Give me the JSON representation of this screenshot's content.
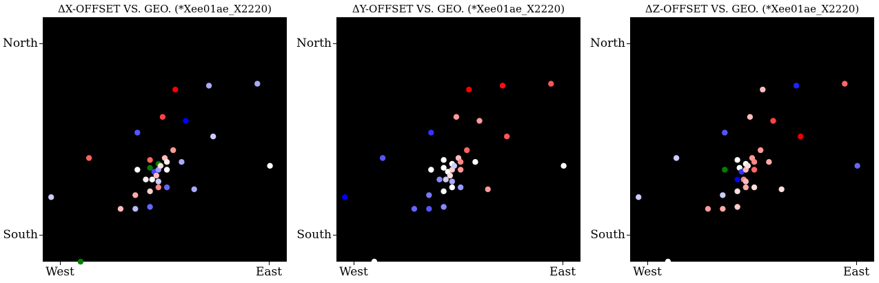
{
  "chart_data": [
    {
      "type": "scatter",
      "title": "ΔX-OFFSET VS. GEO. (*Xee01ae_X2220)",
      "xticks": [
        {
          "label": "West",
          "value": 0
        },
        {
          "label": "East",
          "value": 1
        }
      ],
      "yticks": [
        {
          "label": "North",
          "value": 1
        },
        {
          "label": "South",
          "value": 0
        }
      ],
      "xlim": [
        -0.08,
        1.08
      ],
      "ylim": [
        -0.11,
        1.14
      ],
      "points": [
        {
          "x": -0.04,
          "y": 0.22,
          "color": "#ccccff"
        },
        {
          "x": 0.1,
          "y": -0.11,
          "color": "#008000"
        },
        {
          "x": 0.14,
          "y": 0.42,
          "color": "#ff6060"
        },
        {
          "x": 0.29,
          "y": 0.16,
          "color": "#ffbbbb"
        },
        {
          "x": 0.36,
          "y": 0.16,
          "color": "#bbbbff"
        },
        {
          "x": 0.36,
          "y": 0.23,
          "color": "#ffaaaa"
        },
        {
          "x": 0.37,
          "y": 0.36,
          "color": "#ffffff"
        },
        {
          "x": 0.37,
          "y": 0.55,
          "color": "#5555ff"
        },
        {
          "x": 0.41,
          "y": 0.31,
          "color": "#ffeeee"
        },
        {
          "x": 0.43,
          "y": 0.25,
          "color": "#ffcccc"
        },
        {
          "x": 0.43,
          "y": 0.17,
          "color": "#6666ff"
        },
        {
          "x": 0.43,
          "y": 0.41,
          "color": "#ff6666"
        },
        {
          "x": 0.43,
          "y": 0.37,
          "color": "#008000"
        },
        {
          "x": 0.44,
          "y": 0.31,
          "color": "#ffffff"
        },
        {
          "x": 0.45,
          "y": 0.35,
          "color": "#4444ff"
        },
        {
          "x": 0.46,
          "y": 0.33,
          "color": "#ffbbbb"
        },
        {
          "x": 0.47,
          "y": 0.36,
          "color": "#9999ff"
        },
        {
          "x": 0.47,
          "y": 0.39,
          "color": "#008000"
        },
        {
          "x": 0.47,
          "y": 0.3,
          "color": "#ccccff"
        },
        {
          "x": 0.47,
          "y": 0.27,
          "color": "#ff8888"
        },
        {
          "x": 0.48,
          "y": 0.38,
          "color": "#ffdddd"
        },
        {
          "x": 0.49,
          "y": 0.63,
          "color": "#ff4444"
        },
        {
          "x": 0.5,
          "y": 0.42,
          "color": "#ffbbbb"
        },
        {
          "x": 0.51,
          "y": 0.36,
          "color": "#ffffff"
        },
        {
          "x": 0.51,
          "y": 0.4,
          "color": "#ffeeee"
        },
        {
          "x": 0.51,
          "y": 0.27,
          "color": "#6666ff"
        },
        {
          "x": 0.54,
          "y": 0.46,
          "color": "#ff9999"
        },
        {
          "x": 0.55,
          "y": 0.77,
          "color": "#ff0000"
        },
        {
          "x": 0.58,
          "y": 0.4,
          "color": "#aaaaff"
        },
        {
          "x": 0.6,
          "y": 0.61,
          "color": "#0000ff"
        },
        {
          "x": 0.64,
          "y": 0.26,
          "color": "#aaaaff"
        },
        {
          "x": 0.71,
          "y": 0.79,
          "color": "#aaaaff"
        },
        {
          "x": 0.73,
          "y": 0.53,
          "color": "#ccccff"
        },
        {
          "x": 0.94,
          "y": 0.8,
          "color": "#aaaaff"
        },
        {
          "x": 1.0,
          "y": 0.38,
          "color": "#ffffff"
        }
      ]
    },
    {
      "type": "scatter",
      "title": "ΔY-OFFSET VS. GEO. (*Xee01ae_X2220)",
      "xticks": [
        {
          "label": "West",
          "value": 0
        },
        {
          "label": "East",
          "value": 1
        }
      ],
      "yticks": [
        {
          "label": "North",
          "value": 1
        },
        {
          "label": "South",
          "value": 0
        }
      ],
      "xlim": [
        -0.08,
        1.08
      ],
      "ylim": [
        -0.11,
        1.14
      ],
      "points": [
        {
          "x": -0.04,
          "y": 0.22,
          "color": "#0000ff"
        },
        {
          "x": 0.1,
          "y": -0.11,
          "color": "#ffffff"
        },
        {
          "x": 0.14,
          "y": 0.42,
          "color": "#5555ff"
        },
        {
          "x": 0.29,
          "y": 0.16,
          "color": "#6666ff"
        },
        {
          "x": 0.36,
          "y": 0.16,
          "color": "#5555ff"
        },
        {
          "x": 0.36,
          "y": 0.23,
          "color": "#7777ff"
        },
        {
          "x": 0.37,
          "y": 0.36,
          "color": "#ffffff"
        },
        {
          "x": 0.37,
          "y": 0.55,
          "color": "#3333ff"
        },
        {
          "x": 0.41,
          "y": 0.31,
          "color": "#8888ff"
        },
        {
          "x": 0.43,
          "y": 0.25,
          "color": "#ffffff"
        },
        {
          "x": 0.43,
          "y": 0.17,
          "color": "#8888ff"
        },
        {
          "x": 0.43,
          "y": 0.41,
          "color": "#ffffff"
        },
        {
          "x": 0.43,
          "y": 0.37,
          "color": "#ffffff"
        },
        {
          "x": 0.44,
          "y": 0.31,
          "color": "#ccccff"
        },
        {
          "x": 0.45,
          "y": 0.35,
          "color": "#ffffff"
        },
        {
          "x": 0.46,
          "y": 0.33,
          "color": "#ffdddd"
        },
        {
          "x": 0.47,
          "y": 0.36,
          "color": "#ffcccc"
        },
        {
          "x": 0.47,
          "y": 0.39,
          "color": "#ffffff"
        },
        {
          "x": 0.47,
          "y": 0.3,
          "color": "#aaaaff"
        },
        {
          "x": 0.47,
          "y": 0.27,
          "color": "#ffffff"
        },
        {
          "x": 0.48,
          "y": 0.38,
          "color": "#ccccff"
        },
        {
          "x": 0.49,
          "y": 0.63,
          "color": "#ff9999"
        },
        {
          "x": 0.5,
          "y": 0.42,
          "color": "#ffbbbb"
        },
        {
          "x": 0.51,
          "y": 0.36,
          "color": "#ff9999"
        },
        {
          "x": 0.51,
          "y": 0.4,
          "color": "#ff8888"
        },
        {
          "x": 0.51,
          "y": 0.27,
          "color": "#9999ff"
        },
        {
          "x": 0.54,
          "y": 0.46,
          "color": "#ff6666"
        },
        {
          "x": 0.55,
          "y": 0.77,
          "color": "#ff0000"
        },
        {
          "x": 0.58,
          "y": 0.4,
          "color": "#ffffff"
        },
        {
          "x": 0.6,
          "y": 0.61,
          "color": "#ff9999"
        },
        {
          "x": 0.64,
          "y": 0.26,
          "color": "#ff9999"
        },
        {
          "x": 0.71,
          "y": 0.79,
          "color": "#ff1111"
        },
        {
          "x": 0.73,
          "y": 0.53,
          "color": "#ff5555"
        },
        {
          "x": 0.94,
          "y": 0.8,
          "color": "#ff5555"
        },
        {
          "x": 1.0,
          "y": 0.38,
          "color": "#ffffff"
        }
      ]
    },
    {
      "type": "scatter",
      "title": "ΔZ-OFFSET VS. GEO. (*Xee01ae_X2220)",
      "xticks": [
        {
          "label": "West",
          "value": 0
        },
        {
          "label": "East",
          "value": 1
        }
      ],
      "yticks": [
        {
          "label": "North",
          "value": 1
        },
        {
          "label": "South",
          "value": 0
        }
      ],
      "xlim": [
        -0.08,
        1.08
      ],
      "ylim": [
        -0.11,
        1.14
      ],
      "points": [
        {
          "x": -0.04,
          "y": 0.22,
          "color": "#ccccff"
        },
        {
          "x": 0.1,
          "y": -0.11,
          "color": "#ffffff"
        },
        {
          "x": 0.14,
          "y": 0.42,
          "color": "#ccccff"
        },
        {
          "x": 0.29,
          "y": 0.16,
          "color": "#ff9999"
        },
        {
          "x": 0.36,
          "y": 0.16,
          "color": "#ffaaaa"
        },
        {
          "x": 0.36,
          "y": 0.23,
          "color": "#ccccff"
        },
        {
          "x": 0.37,
          "y": 0.36,
          "color": "#008000"
        },
        {
          "x": 0.37,
          "y": 0.55,
          "color": "#5555ff"
        },
        {
          "x": 0.43,
          "y": 0.31,
          "color": "#0000ff"
        },
        {
          "x": 0.43,
          "y": 0.17,
          "color": "#ffcccc"
        },
        {
          "x": 0.43,
          "y": 0.41,
          "color": "#ffffff"
        },
        {
          "x": 0.43,
          "y": 0.25,
          "color": "#ffdddd"
        },
        {
          "x": 0.44,
          "y": 0.37,
          "color": "#ffffff"
        },
        {
          "x": 0.45,
          "y": 0.35,
          "color": "#3333ff"
        },
        {
          "x": 0.46,
          "y": 0.31,
          "color": "#ff8888"
        },
        {
          "x": 0.47,
          "y": 0.36,
          "color": "#ffbbbb"
        },
        {
          "x": 0.47,
          "y": 0.39,
          "color": "#ffffff"
        },
        {
          "x": 0.47,
          "y": 0.3,
          "color": "#ffbbbb"
        },
        {
          "x": 0.47,
          "y": 0.27,
          "color": "#ffaaaa"
        },
        {
          "x": 0.48,
          "y": 0.38,
          "color": "#ffdddd"
        },
        {
          "x": 0.49,
          "y": 0.63,
          "color": "#ffbbbb"
        },
        {
          "x": 0.5,
          "y": 0.42,
          "color": "#ff9999"
        },
        {
          "x": 0.51,
          "y": 0.36,
          "color": "#ff6666"
        },
        {
          "x": 0.51,
          "y": 0.4,
          "color": "#ff8888"
        },
        {
          "x": 0.51,
          "y": 0.27,
          "color": "#ffdddd"
        },
        {
          "x": 0.54,
          "y": 0.46,
          "color": "#ff9999"
        },
        {
          "x": 0.55,
          "y": 0.77,
          "color": "#ffbbbb"
        },
        {
          "x": 0.58,
          "y": 0.4,
          "color": "#ffaaaa"
        },
        {
          "x": 0.6,
          "y": 0.61,
          "color": "#ff4444"
        },
        {
          "x": 0.64,
          "y": 0.26,
          "color": "#ffdddd"
        },
        {
          "x": 0.71,
          "y": 0.79,
          "color": "#2222ff"
        },
        {
          "x": 0.73,
          "y": 0.53,
          "color": "#ee0000"
        },
        {
          "x": 0.94,
          "y": 0.8,
          "color": "#ff6666"
        },
        {
          "x": 1.0,
          "y": 0.38,
          "color": "#6666ff"
        }
      ]
    }
  ]
}
